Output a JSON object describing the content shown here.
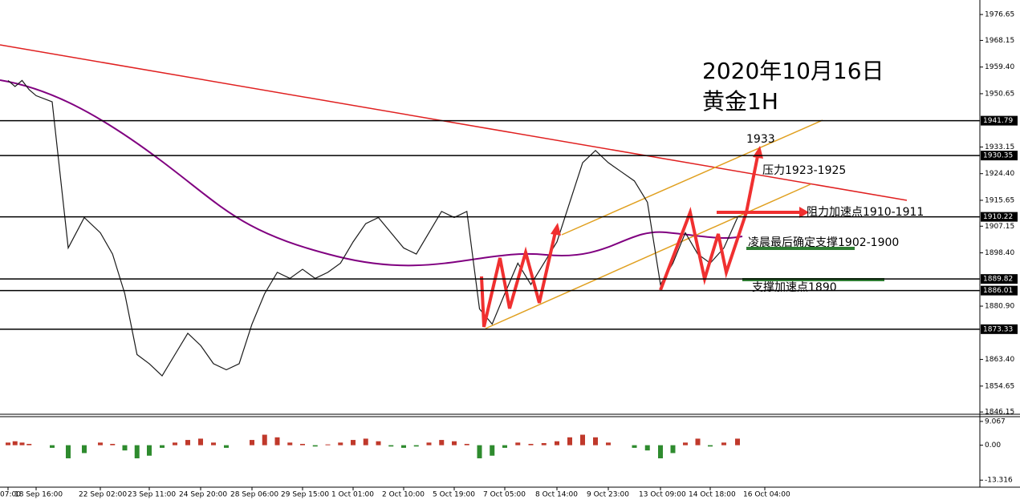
{
  "chart_data": [
    {
      "type": "line",
      "title": "2020年10月16日",
      "subtitle": "黄金1H",
      "annotations": [
        "1933",
        "压力1923-1925",
        "阻力加速点1910-1911",
        "凌晨最后确定支撑1902-1900",
        "支撑加速点1890"
      ],
      "categories": [
        "07:00",
        null,
        null,
        null,
        "18 Sep 16:00",
        null,
        null,
        null,
        "22 Sep 02:00",
        null,
        null,
        null,
        "23 Sep 11:00",
        null,
        null,
        null,
        "24 Sep 20:00",
        null,
        null,
        null,
        "28 Sep 06:00",
        null,
        null,
        null,
        "29 Sep 15:00",
        null,
        null,
        null,
        "1 Oct 01:00",
        null,
        null,
        null,
        "2 Oct 10:00",
        null,
        null,
        null,
        "5 Oct 19:00",
        null,
        null,
        null,
        "7 Oct 05:00",
        null,
        null,
        null,
        "8 Oct 14:00",
        null,
        null,
        null,
        "9 Oct 23:00",
        null,
        null,
        null,
        "13 Oct 09:00",
        null,
        null,
        null,
        "14 Oct 18:00",
        null,
        null,
        null,
        "16 Oct 04:00"
      ],
      "series": [
        {
          "color": "#1a1a1a",
          "values": [
            1955,
            1953,
            1955,
            1952,
            1950,
            1948,
            1900,
            1910,
            1905,
            1898,
            1885,
            1865,
            1862,
            1858,
            1865,
            1872,
            1868,
            1862,
            1860,
            1862,
            1875,
            1885,
            1892,
            1890,
            1893,
            1890,
            1892,
            1895,
            1902,
            1908,
            1910,
            1905,
            1900,
            1898,
            1905,
            1912,
            1910,
            1912,
            1880,
            1875,
            1885,
            1895,
            1888,
            1895,
            1902,
            1915,
            1928,
            1932,
            1928,
            1925,
            1922,
            1915,
            1888,
            1895,
            1905,
            1898,
            1895,
            1900,
            1910,
            null,
            null
          ]
        }
      ],
      "ylim": [
        1845.4,
        1980.1
      ],
      "yticks": [
        1976.65,
        1968.15,
        {
          "value": 1959.4,
          "label": "1959.40"
        },
        1950.65,
        1933.15,
        {
          "value": 1924.4,
          "label": "1924.40"
        },
        1915.65,
        1907.15,
        {
          "value": 1898.4,
          "label": "1898.40"
        },
        {
          "value": 1880.9,
          "label": "1880.90"
        },
        {
          "value": 1863.4,
          "label": "1863.40"
        },
        1854.65,
        1846.15
      ],
      "levels": [
        1941.79,
        1930.35,
        1910.22,
        1889.82,
        1886.01,
        1873.33
      ]
    },
    {
      "type": "bar",
      "colors": {
        "positive": "#c0392b",
        "negative": "#2e8b2e"
      },
      "values": [
        1,
        1.5,
        1,
        0.5,
        0,
        -1,
        -5,
        -3,
        1,
        0.5,
        -2,
        -5,
        -4,
        -1,
        1,
        2,
        2.5,
        1,
        -1,
        0,
        2,
        4,
        3,
        1,
        0.5,
        -0.5,
        0.3,
        1,
        2,
        2.5,
        1.5,
        -0.5,
        -1,
        -0.5,
        1,
        2,
        1.5,
        0.5,
        -5,
        -4,
        -1,
        1,
        0.5,
        0.8,
        1.5,
        3,
        4,
        3,
        1,
        0,
        -1,
        -2,
        -5,
        -3,
        1,
        2.5,
        -0.5,
        1,
        2.5,
        null,
        null
      ],
      "ylim": [
        -16,
        10.88
      ],
      "yticks": [
        9.067,
        {
          "value": 0,
          "label": "0.00"
        },
        -13.316
      ]
    }
  ]
}
